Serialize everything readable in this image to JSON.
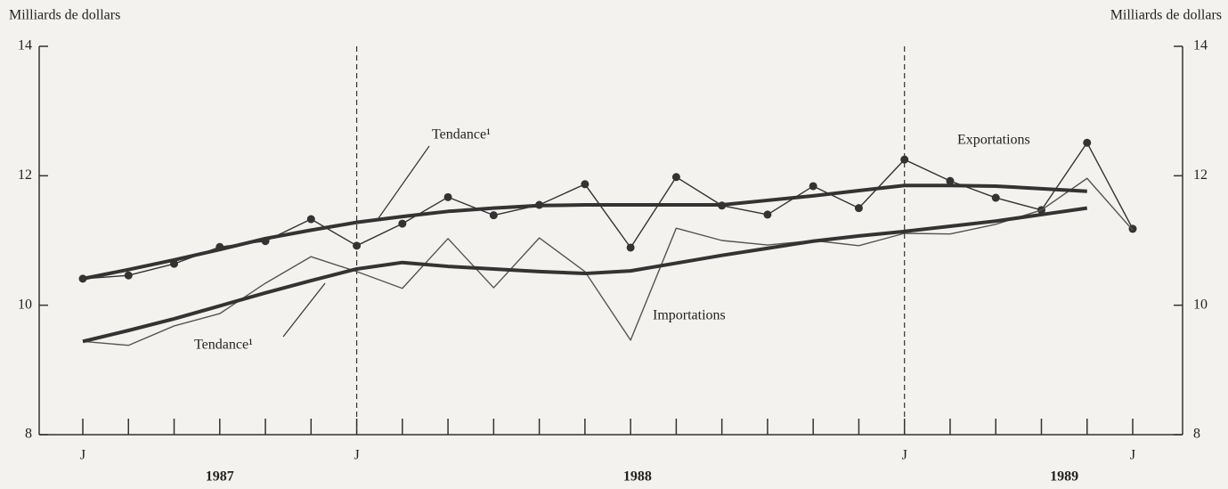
{
  "chart_data": {
    "type": "line",
    "y_axis_label": "Milliards de dollars",
    "y2_axis_label": "Milliards de dollars",
    "categories": [
      "J",
      null,
      null,
      null,
      null,
      null,
      "J",
      null,
      null,
      null,
      null,
      null,
      null,
      null,
      null,
      null,
      null,
      null,
      "J",
      null,
      null,
      null,
      null,
      "J"
    ],
    "years": [
      "1987",
      "1988",
      "1989"
    ],
    "ylim": [
      8,
      14
    ],
    "yticks": [
      8,
      10,
      12,
      14
    ],
    "y2lim": [
      8,
      14
    ],
    "y2ticks": [
      8,
      10,
      12,
      14
    ],
    "series": [
      {
        "name": "Exportations",
        "color": "#333333",
        "markers": true,
        "values": [
          10.41,
          10.46,
          10.64,
          10.9,
          10.99,
          11.33,
          10.92,
          11.26,
          11.67,
          11.39,
          11.55,
          11.87,
          10.89,
          11.98,
          11.54,
          11.4,
          11.84,
          11.5,
          12.25,
          11.92,
          11.66,
          11.47,
          12.51,
          11.18
        ]
      },
      {
        "name": "Importations",
        "color": "#555555",
        "markers": false,
        "values": [
          9.44,
          9.38,
          9.68,
          9.87,
          10.34,
          10.75,
          10.52,
          10.26,
          11.03,
          10.27,
          11.04,
          10.52,
          9.46,
          11.19,
          11.0,
          10.93,
          11.0,
          10.92,
          11.11,
          11.1,
          11.25,
          11.47,
          11.96,
          11.16
        ]
      },
      {
        "name": "Tendance¹",
        "color": "#333333",
        "markers": false,
        "thick": true,
        "values": [
          10.41,
          10.55,
          10.7,
          10.86,
          11.03,
          11.16,
          11.28,
          11.37,
          11.45,
          11.5,
          11.54,
          11.55,
          11.55,
          11.55,
          11.55,
          11.62,
          11.69,
          11.77,
          11.85,
          11.85,
          11.84,
          11.8,
          11.76,
          null
        ]
      },
      {
        "name": "Tendance¹",
        "color": "#333333",
        "markers": false,
        "thick": true,
        "values": [
          9.44,
          9.61,
          9.79,
          9.99,
          10.19,
          10.38,
          10.56,
          10.66,
          10.6,
          10.56,
          10.52,
          10.49,
          10.53,
          10.65,
          10.77,
          10.88,
          10.99,
          11.07,
          11.14,
          11.22,
          11.3,
          11.4,
          11.5,
          null
        ]
      }
    ]
  }
}
